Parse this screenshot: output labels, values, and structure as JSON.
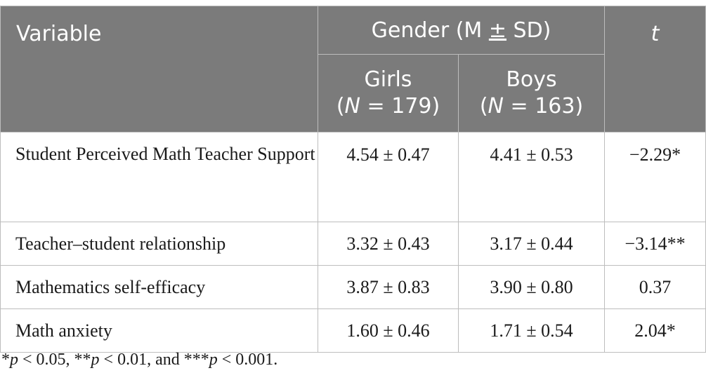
{
  "header": {
    "variable": "Variable",
    "group_prefix": "Gender (M ",
    "group_pm": "±",
    "group_suffix": " SD)",
    "t": "t",
    "girls": "Girls",
    "boys": "Boys",
    "n_italic": "N",
    "girls_n": " = 179)",
    "boys_n": " = 163)"
  },
  "rows": [
    {
      "variable": "Student Perceived Math Teacher Support",
      "girls": "4.54 ± 0.47",
      "boys": "4.41 ± 0.53",
      "t": "−2.29*"
    },
    {
      "variable": "Teacher–student relationship",
      "girls": "3.32 ± 0.43",
      "boys": "3.17 ± 0.44",
      "t": "−3.14**"
    },
    {
      "variable": "Mathematics self-efficacy",
      "girls": "3.87 ± 0.83",
      "boys": "3.90 ± 0.80",
      "t": "0.37"
    },
    {
      "variable": "Math anxiety",
      "girls": "1.60 ± 0.46",
      "boys": "1.71 ± 0.54",
      "t": "2.04*"
    }
  ],
  "footnote": {
    "s1": "*",
    "p1": "p",
    "v1": " < 0.05, **",
    "p2": "p",
    "v2": " < 0.01, and ***",
    "p3": "p",
    "v3": " < 0.001."
  }
}
